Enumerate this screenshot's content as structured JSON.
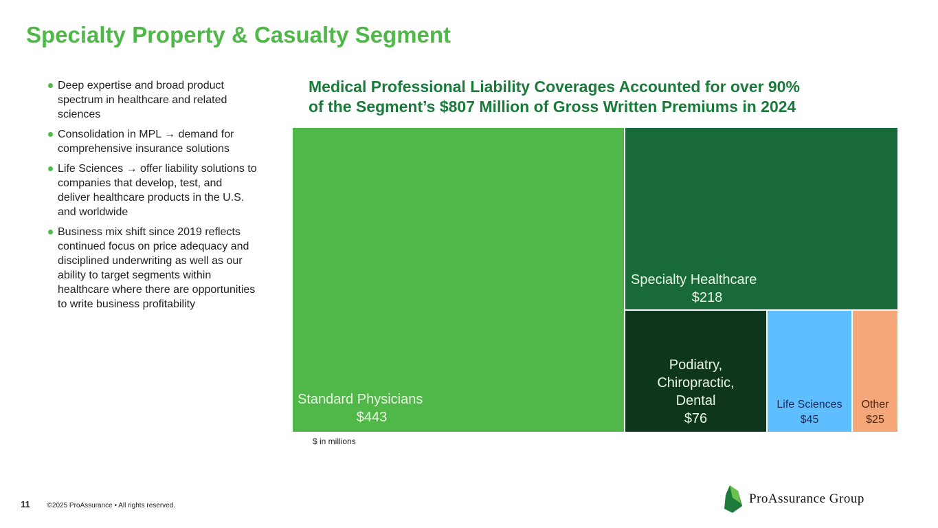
{
  "title": "Specialty Property & Casualty Segment",
  "bullets": [
    "Deep expertise and broad product spectrum in healthcare and related sciences",
    "Consolidation in MPL → demand for comprehensive insurance solutions",
    "Life Sciences → offer liability solutions to companies that develop, test, and deliver healthcare products in the U.S. and worldwide",
    "Business mix shift since 2019 reflects continued focus on price adequacy and disciplined underwriting as well as our ability to target segments within healthcare where there are opportunities to write business profitability"
  ],
  "chart_data": {
    "type": "treemap",
    "title_line1": "Medical Professional Liability Coverages Accounted for over 90%",
    "title_line2": "of the Segment’s $807 Million of Gross Written Premiums in 2024",
    "unit_note": "$ in millions",
    "items": [
      {
        "name": "Standard Physicians",
        "value": 443,
        "label": "$443",
        "color": "#50b848"
      },
      {
        "name": "Specialty Healthcare",
        "value": 218,
        "label": "$218",
        "color": "#186b38"
      },
      {
        "name": "Podiatry, Chiropractic, Dental",
        "value": 76,
        "label": "$76",
        "color": "#0e361c"
      },
      {
        "name": "Life Sciences",
        "value": 45,
        "label": "$45",
        "color": "#5fbeff"
      },
      {
        "name": "Other",
        "value": 25,
        "label": "$25",
        "color": "#f5a77a"
      }
    ]
  },
  "footer": {
    "page": "11",
    "copyright": "©2025 ProAssurance  •  All rights reserved."
  },
  "logo": {
    "text": "ProAssurance Group"
  }
}
